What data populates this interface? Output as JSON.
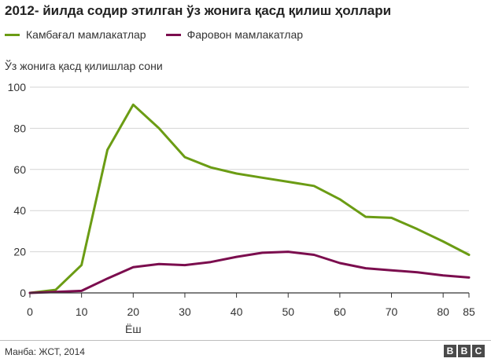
{
  "header": {
    "title": "2012- йилда содир этилган ўз жонига қасд қилиш ҳоллари"
  },
  "footer": {
    "source": "Манба: ЖСТ, 2014",
    "logo_letters": [
      "B",
      "B",
      "C"
    ]
  },
  "colors": {
    "low_income": "#6b9c14",
    "high_income": "#7b0d4e",
    "grid": "#d4d4d4",
    "axis": "#333333"
  },
  "chart_data": {
    "type": "line",
    "title": "2012- йилда содир этилган ўз жонига қасд қилиш ҳоллари",
    "ylabel": "Ўз жонига қасд қилишлар сони",
    "xlabel": "Ёш",
    "xlim": [
      0,
      85
    ],
    "ylim": [
      0,
      100
    ],
    "x_ticks": [
      0,
      10,
      20,
      30,
      40,
      50,
      60,
      70,
      80,
      85
    ],
    "y_ticks": [
      0,
      20,
      40,
      60,
      80,
      100
    ],
    "grid": true,
    "legend_position": "top-left",
    "series": [
      {
        "name": "Камбағал мамлакатлар",
        "color": "#6b9c14",
        "x": [
          0,
          5,
          10,
          15,
          20,
          25,
          30,
          35,
          40,
          45,
          50,
          55,
          60,
          65,
          70,
          75,
          80,
          85
        ],
        "values": [
          0,
          1.5,
          13.5,
          69.5,
          91.5,
          80,
          66,
          61,
          58,
          56,
          54,
          52,
          45.5,
          37,
          36.5,
          31,
          25,
          18.5
        ]
      },
      {
        "name": "Фаровон мамлакатлар",
        "color": "#7b0d4e",
        "x": [
          0,
          5,
          10,
          15,
          20,
          25,
          30,
          35,
          40,
          45,
          50,
          55,
          60,
          65,
          70,
          75,
          80,
          85
        ],
        "values": [
          0,
          0.5,
          1,
          7,
          12.5,
          14,
          13.5,
          15,
          17.5,
          19.5,
          20,
          18.5,
          14.5,
          12,
          11,
          10,
          8.5,
          7.5
        ]
      }
    ]
  }
}
